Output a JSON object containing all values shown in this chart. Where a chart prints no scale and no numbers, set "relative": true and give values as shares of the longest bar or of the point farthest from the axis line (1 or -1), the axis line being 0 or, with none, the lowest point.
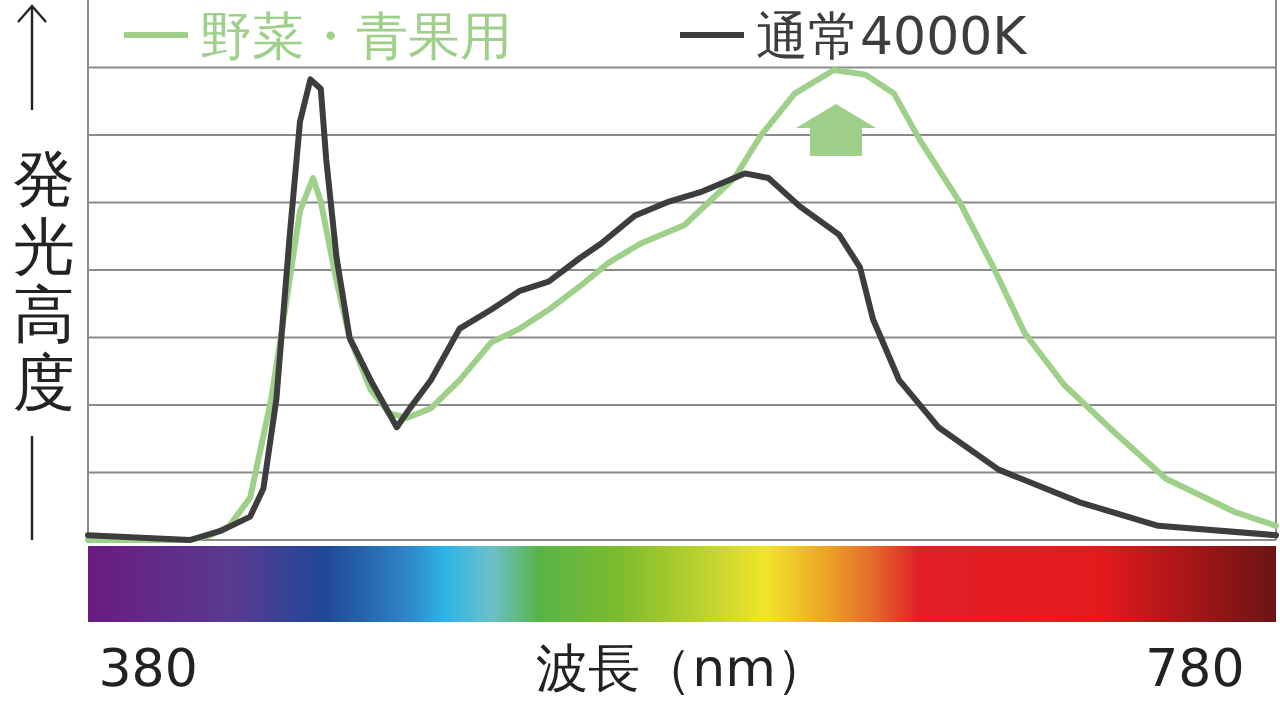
{
  "chart_data": {
    "type": "line",
    "relative": true,
    "xlabel": "波長（nm）",
    "ylabel": "発光高度",
    "xlim": [
      357,
      811
    ],
    "xticks": [
      380,
      780
    ],
    "grid": "y",
    "legend": "top",
    "tick_labels": "x",
    "series": [
      {
        "name": "野菜・青果用",
        "color": "#9fd08a",
        "x": [
          357,
          396,
          404,
          411,
          419,
          427,
          434,
          438,
          443,
          446,
          452,
          457,
          465,
          472,
          479,
          488,
          499,
          511,
          522,
          533,
          545,
          556,
          568,
          585,
          604,
          614,
          627,
          642,
          654,
          665,
          675,
          690,
          703,
          715,
          730,
          749,
          769,
          795,
          811
        ],
        "values": [
          0,
          0,
          0.01,
          0.03,
          0.09,
          0.3,
          0.55,
          0.7,
          0.77,
          0.72,
          0.55,
          0.43,
          0.32,
          0.27,
          0.26,
          0.28,
          0.34,
          0.42,
          0.45,
          0.49,
          0.54,
          0.59,
          0.63,
          0.67,
          0.77,
          0.86,
          0.95,
          1,
          0.99,
          0.95,
          0.85,
          0.72,
          0.58,
          0.44,
          0.33,
          0.23,
          0.13,
          0.06,
          0.03
        ]
      },
      {
        "name": "通常4000K",
        "color": "#3d3d3d",
        "x": [
          357,
          396,
          408,
          419,
          424,
          429,
          434,
          438,
          442,
          446,
          448,
          452,
          457,
          465,
          475,
          480,
          488,
          499,
          511,
          522,
          533,
          545,
          553,
          566,
          579,
          591,
          608,
          617,
          629,
          644,
          652,
          657,
          667,
          682,
          705,
          736,
          766,
          811
        ],
        "values": [
          0.01,
          0,
          0.02,
          0.05,
          0.11,
          0.3,
          0.64,
          0.89,
          0.98,
          0.96,
          0.81,
          0.6,
          0.43,
          0.34,
          0.24,
          0.28,
          0.34,
          0.45,
          0.49,
          0.53,
          0.55,
          0.6,
          0.63,
          0.69,
          0.72,
          0.74,
          0.78,
          0.77,
          0.71,
          0.65,
          0.58,
          0.47,
          0.34,
          0.24,
          0.15,
          0.08,
          0.03,
          0.01
        ]
      }
    ]
  }
}
